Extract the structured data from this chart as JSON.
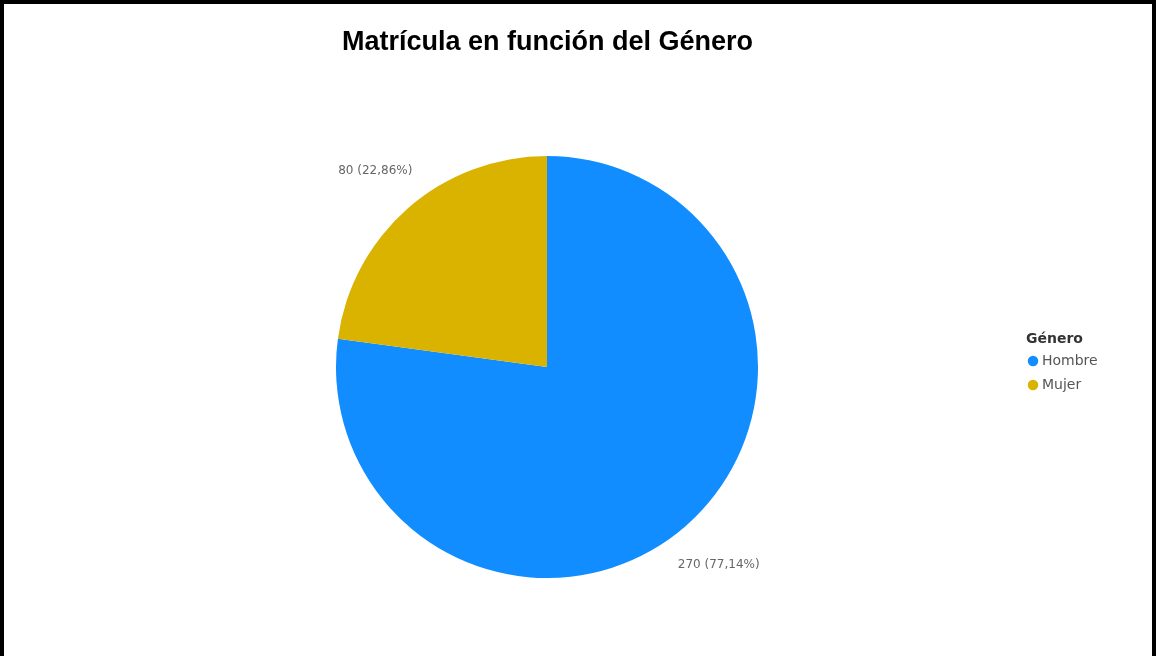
{
  "chart_data": {
    "type": "pie",
    "title": "Matrícula en función del Género",
    "legend_title": "Género",
    "categories": [
      "Hombre",
      "Mujer"
    ],
    "values": [
      270,
      80
    ],
    "colors": [
      "#118dff",
      "#d9b300"
    ],
    "value_labels": [
      "270 (77,14%)",
      "80 (22,86%)"
    ],
    "legend": "right"
  }
}
